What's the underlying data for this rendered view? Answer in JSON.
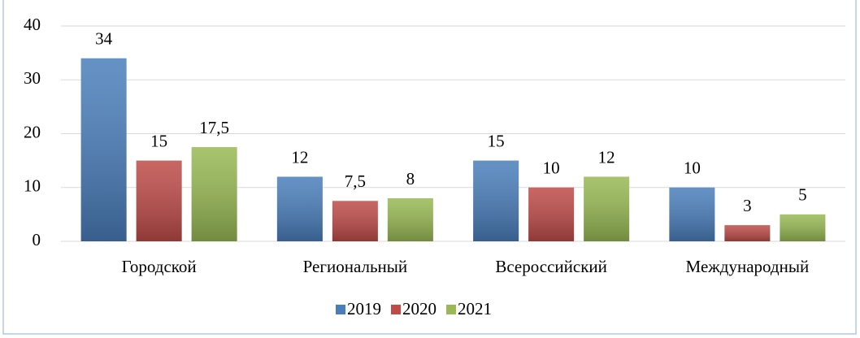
{
  "chart_data": {
    "type": "bar",
    "categories": [
      "Городской",
      "Региональный",
      "Всероссийский",
      "Международный"
    ],
    "series": [
      {
        "name": "2019",
        "color": "#4a7ebb",
        "values": [
          34,
          12,
          15,
          10
        ],
        "value_labels": [
          "34",
          "12",
          "15",
          "10"
        ]
      },
      {
        "name": "2020",
        "color": "#be4b48",
        "values": [
          15,
          7.5,
          10,
          3
        ],
        "value_labels": [
          "15",
          "7,5",
          "10",
          "3"
        ]
      },
      {
        "name": "2021",
        "color": "#98b954",
        "values": [
          17.5,
          8,
          12,
          5
        ],
        "value_labels": [
          "17,5",
          "8",
          "12",
          "5"
        ]
      }
    ],
    "ylim": [
      0,
      40
    ],
    "yticks": [
      0,
      10,
      20,
      30,
      40
    ],
    "grid": true,
    "legend": "bottom"
  }
}
